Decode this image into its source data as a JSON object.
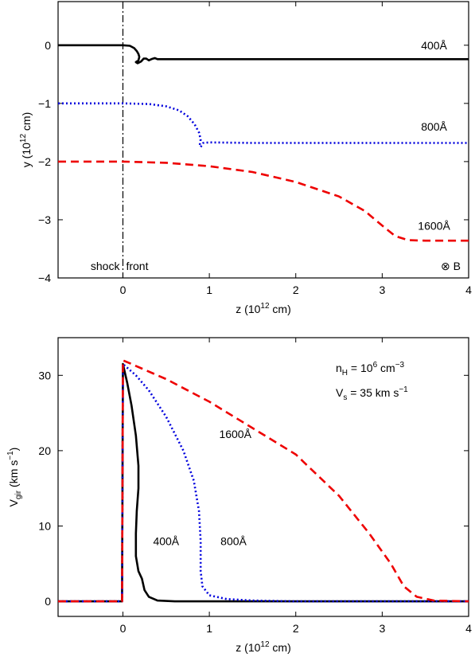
{
  "chart_data": [
    {
      "type": "line",
      "xlabel": "z (10^12 cm)",
      "xlabel_parts": {
        "pre": "z (10",
        "sup": "12",
        "post": " cm)"
      },
      "ylabel": "y (10^12 cm)",
      "ylabel_parts": {
        "pre": "y (10",
        "sup": "12",
        "post": " cm)"
      },
      "xlim": [
        -0.75,
        4
      ],
      "ylim": [
        -4,
        0.75
      ],
      "xticks": [
        0,
        1,
        2,
        3,
        4
      ],
      "yticks": [
        -4,
        -3,
        -2,
        -1,
        0
      ],
      "grid": false,
      "annotations": {
        "shock": "shock",
        "front": "front",
        "field": "⊗ B"
      },
      "series": [
        {
          "name": "400Å",
          "color": "#000000",
          "style": "solid",
          "points": [
            [
              -0.75,
              0
            ],
            [
              0,
              0
            ],
            [
              0.08,
              -0.01
            ],
            [
              0.13,
              -0.05
            ],
            [
              0.16,
              -0.1
            ],
            [
              0.18,
              -0.15
            ],
            [
              0.19,
              -0.2
            ],
            [
              0.18,
              -0.26
            ],
            [
              0.15,
              -0.29
            ],
            [
              0.17,
              -0.31
            ],
            [
              0.21,
              -0.28
            ],
            [
              0.24,
              -0.23
            ],
            [
              0.27,
              -0.23
            ],
            [
              0.3,
              -0.26
            ],
            [
              0.33,
              -0.24
            ],
            [
              0.37,
              -0.22
            ],
            [
              0.4,
              -0.24
            ],
            [
              0.5,
              -0.24
            ],
            [
              4,
              -0.24
            ]
          ]
        },
        {
          "name": "800Å",
          "color": "#0000dd",
          "style": "dotted",
          "points": [
            [
              -0.75,
              -1
            ],
            [
              0,
              -1
            ],
            [
              0.3,
              -1.01
            ],
            [
              0.5,
              -1.05
            ],
            [
              0.65,
              -1.12
            ],
            [
              0.75,
              -1.22
            ],
            [
              0.83,
              -1.36
            ],
            [
              0.88,
              -1.5
            ],
            [
              0.9,
              -1.62
            ],
            [
              0.89,
              -1.7
            ],
            [
              0.9,
              -1.75
            ],
            [
              0.93,
              -1.68
            ],
            [
              1,
              -1.67
            ],
            [
              1.5,
              -1.68
            ],
            [
              4,
              -1.68
            ]
          ]
        },
        {
          "name": "1600Å",
          "color": "#ee0000",
          "style": "dashed",
          "points": [
            [
              -0.75,
              -2
            ],
            [
              0,
              -2
            ],
            [
              0.5,
              -2.02
            ],
            [
              1,
              -2.08
            ],
            [
              1.5,
              -2.18
            ],
            [
              2,
              -2.35
            ],
            [
              2.5,
              -2.6
            ],
            [
              2.8,
              -2.85
            ],
            [
              3,
              -3.1
            ],
            [
              3.15,
              -3.28
            ],
            [
              3.3,
              -3.35
            ],
            [
              3.5,
              -3.36
            ],
            [
              4,
              -3.36
            ]
          ]
        }
      ],
      "curve_labels": [
        {
          "series": "400Å",
          "x": 3.6,
          "y": 0
        },
        {
          "series": "800Å",
          "x": 3.6,
          "y": -1.4
        },
        {
          "series": "1600Å",
          "x": 3.6,
          "y": -3.1
        }
      ]
    },
    {
      "type": "line",
      "xlabel": "z (10^12 cm)",
      "xlabel_parts": {
        "pre": "z (10",
        "sup": "12",
        "post": " cm)"
      },
      "ylabel": "V_gir (km s^-1)",
      "ylabel_parts": {
        "pre": "V",
        "sub": "gir",
        "mid": " (km s",
        "sup": "−1",
        "post": ")"
      },
      "xlim": [
        -0.75,
        4
      ],
      "ylim": [
        -2,
        35
      ],
      "xticks": [
        0,
        1,
        2,
        3,
        4
      ],
      "yticks": [
        0,
        10,
        20,
        30
      ],
      "grid": false,
      "annotations": {
        "density": {
          "pre": "n",
          "sub": "H",
          "mid": " = 10",
          "sup1": "6",
          "post": " cm",
          "sup2": "−3"
        },
        "speed": {
          "pre": "V",
          "sub": "s",
          "mid": " = 35 km s",
          "sup": "−1"
        }
      },
      "series": [
        {
          "name": "400Å",
          "color": "#000000",
          "style": "solid",
          "points": [
            [
              -0.75,
              0
            ],
            [
              -0.01,
              0
            ],
            [
              0,
              31.5
            ],
            [
              0.05,
              29
            ],
            [
              0.1,
              26
            ],
            [
              0.15,
              22
            ],
            [
              0.18,
              18
            ],
            [
              0.18,
              15
            ],
            [
              0.16,
              12
            ],
            [
              0.15,
              9
            ],
            [
              0.15,
              6
            ],
            [
              0.18,
              4
            ],
            [
              0.22,
              3
            ],
            [
              0.25,
              1.5
            ],
            [
              0.3,
              0.6
            ],
            [
              0.4,
              0.1
            ],
            [
              0.6,
              0
            ],
            [
              4,
              0
            ]
          ]
        },
        {
          "name": "800Å",
          "color": "#0000dd",
          "style": "dotted",
          "points": [
            [
              -0.75,
              0
            ],
            [
              -0.01,
              0
            ],
            [
              0,
              31.5
            ],
            [
              0.15,
              30
            ],
            [
              0.3,
              28
            ],
            [
              0.5,
              24.5
            ],
            [
              0.7,
              20
            ],
            [
              0.82,
              16
            ],
            [
              0.88,
              12
            ],
            [
              0.9,
              8
            ],
            [
              0.9,
              4
            ],
            [
              0.92,
              2
            ],
            [
              1,
              0.8
            ],
            [
              1.2,
              0.3
            ],
            [
              1.5,
              0.1
            ],
            [
              2,
              0
            ],
            [
              4,
              0
            ]
          ]
        },
        {
          "name": "1600Å",
          "color": "#ee0000",
          "style": "dashed",
          "points": [
            [
              -0.75,
              0
            ],
            [
              -0.01,
              0
            ],
            [
              0,
              32
            ],
            [
              0.5,
              29.5
            ],
            [
              1,
              26.5
            ],
            [
              1.5,
              23
            ],
            [
              2,
              19.5
            ],
            [
              2.5,
              14
            ],
            [
              2.85,
              9
            ],
            [
              3.1,
              5
            ],
            [
              3.25,
              2
            ],
            [
              3.4,
              0.6
            ],
            [
              3.6,
              0.1
            ],
            [
              4,
              0
            ]
          ]
        }
      ],
      "curve_labels": [
        {
          "series": "1600Å",
          "x": 1.3,
          "y": 22.2
        },
        {
          "series": "400Å",
          "x": 0.5,
          "y": 8
        },
        {
          "series": "800Å",
          "x": 1.28,
          "y": 8
        }
      ]
    }
  ]
}
